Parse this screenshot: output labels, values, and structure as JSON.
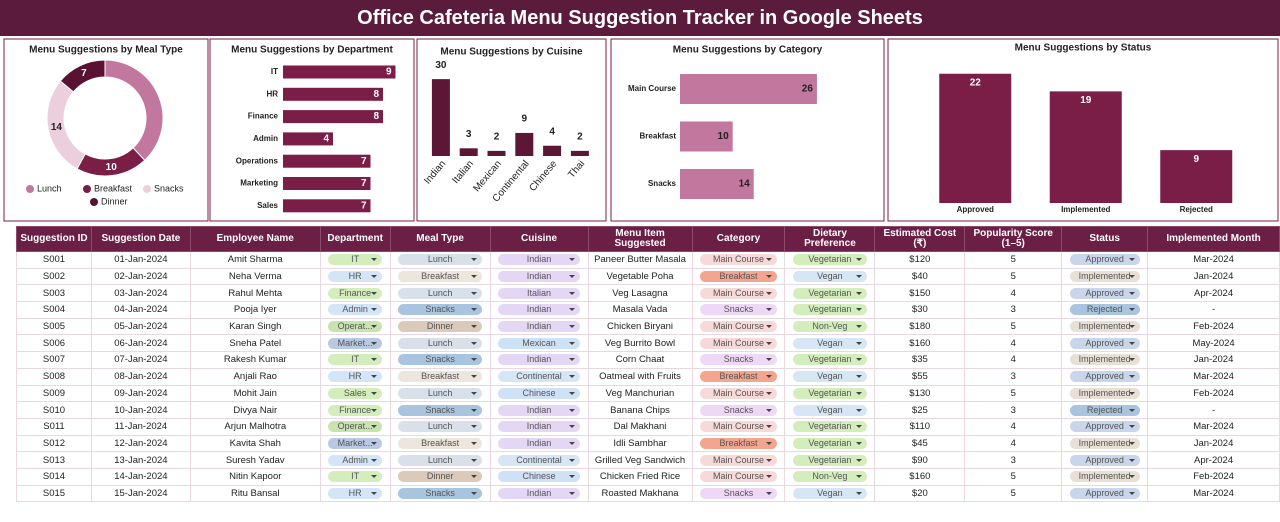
{
  "header": {
    "title": "Office Cafeteria Menu Suggestion Tracker in Google Sheets"
  },
  "chart_data": [
    {
      "type": "donut",
      "title": "Menu Suggestions by Meal Type",
      "categories": [
        "Lunch",
        "Breakfast",
        "Snacks",
        "Dinner"
      ],
      "values": [
        19,
        10,
        14,
        7
      ],
      "value_labels": [
        null,
        "10",
        "14",
        "7"
      ],
      "colors": [
        "#c2779f",
        "#7a1e48",
        "#eccfdc",
        "#5a1233"
      ]
    },
    {
      "type": "hbar",
      "title": "Menu Suggestions by Department",
      "categories": [
        "IT",
        "HR",
        "Finance",
        "Admin",
        "Operations",
        "Marketing",
        "Sales"
      ],
      "values": [
        9,
        8,
        8,
        4,
        7,
        7,
        7
      ],
      "color": "#7a1e48",
      "xlim": [
        0,
        10
      ]
    },
    {
      "type": "bar",
      "title": "Menu Suggestions by Cuisine",
      "categories": [
        "Indian",
        "Italian",
        "Mexican",
        "Continental",
        "Chinese",
        "Thai"
      ],
      "values": [
        30,
        3,
        2,
        9,
        4,
        2
      ],
      "color": "#5c1636",
      "ylim": [
        0,
        32
      ]
    },
    {
      "type": "hbar",
      "title": "Menu Suggestions by Category",
      "categories": [
        "Main Course",
        "Breakfast",
        "Snacks"
      ],
      "values": [
        26,
        10,
        14
      ],
      "color": "#c2779f",
      "xlim": [
        0,
        30
      ]
    },
    {
      "type": "bar",
      "title": "Menu Suggestions by Status",
      "categories": [
        "Approved",
        "Implemented",
        "Rejected"
      ],
      "values": [
        22,
        19,
        9
      ],
      "color": "#7a1e48",
      "ylim": [
        0,
        24
      ]
    }
  ],
  "table": {
    "columns": [
      "Suggestion ID",
      "Suggestion Date",
      "Employee Name",
      "Department",
      "Meal Type",
      "Cuisine",
      "Menu Item Suggested",
      "Category",
      "Dietary Preference",
      "Estimated Cost (₹)",
      "Popularity Score (1–5)",
      "Status",
      "Implemented Month"
    ],
    "rows": [
      [
        "S001",
        "01-Jan-2024",
        "Amit Sharma",
        "IT",
        "Lunch",
        "Indian",
        "Paneer Butter Masala",
        "Main Course",
        "Vegetarian",
        "$120",
        5,
        "Approved",
        "Mar-2024"
      ],
      [
        "S002",
        "02-Jan-2024",
        "Neha Verma",
        "HR",
        "Breakfast",
        "Indian",
        "Vegetable Poha",
        "Breakfast",
        "Vegan",
        "$40",
        5,
        "Implemented",
        "Jan-2024"
      ],
      [
        "S003",
        "03-Jan-2024",
        "Rahul Mehta",
        "Finance",
        "Lunch",
        "Italian",
        "Veg Lasagna",
        "Main Course",
        "Vegetarian",
        "$150",
        4,
        "Approved",
        "Apr-2024"
      ],
      [
        "S004",
        "04-Jan-2024",
        "Pooja Iyer",
        "Admin",
        "Snacks",
        "Indian",
        "Masala Vada",
        "Snacks",
        "Vegetarian",
        "$30",
        3,
        "Rejected",
        "-"
      ],
      [
        "S005",
        "05-Jan-2024",
        "Karan Singh",
        "Operat...",
        "Dinner",
        "Indian",
        "Chicken Biryani",
        "Main Course",
        "Non-Veg",
        "$180",
        5,
        "Implemented",
        "Feb-2024"
      ],
      [
        "S006",
        "06-Jan-2024",
        "Sneha Patel",
        "Market...",
        "Lunch",
        "Mexican",
        "Veg Burrito Bowl",
        "Main Course",
        "Vegan",
        "$160",
        4,
        "Approved",
        "May-2024"
      ],
      [
        "S007",
        "07-Jan-2024",
        "Rakesh Kumar",
        "IT",
        "Snacks",
        "Indian",
        "Corn Chaat",
        "Snacks",
        "Vegetarian",
        "$35",
        4,
        "Implemented",
        "Jan-2024"
      ],
      [
        "S008",
        "08-Jan-2024",
        "Anjali Rao",
        "HR",
        "Breakfast",
        "Continental",
        "Oatmeal with Fruits",
        "Breakfast",
        "Vegan",
        "$55",
        3,
        "Approved",
        "Mar-2024"
      ],
      [
        "S009",
        "09-Jan-2024",
        "Mohit Jain",
        "Sales",
        "Lunch",
        "Chinese",
        "Veg Manchurian",
        "Main Course",
        "Vegetarian",
        "$130",
        5,
        "Implemented",
        "Feb-2024"
      ],
      [
        "S010",
        "10-Jan-2024",
        "Divya Nair",
        "Finance",
        "Snacks",
        "Indian",
        "Banana Chips",
        "Snacks",
        "Vegan",
        "$25",
        3,
        "Rejected",
        "-"
      ],
      [
        "S011",
        "11-Jan-2024",
        "Arjun Malhotra",
        "Operat...",
        "Lunch",
        "Indian",
        "Dal Makhani",
        "Main Course",
        "Vegetarian",
        "$110",
        4,
        "Approved",
        "Mar-2024"
      ],
      [
        "S012",
        "12-Jan-2024",
        "Kavita Shah",
        "Market...",
        "Breakfast",
        "Indian",
        "Idli Sambhar",
        "Breakfast",
        "Vegetarian",
        "$45",
        4,
        "Implemented",
        "Jan-2024"
      ],
      [
        "S013",
        "13-Jan-2024",
        "Suresh Yadav",
        "Admin",
        "Lunch",
        "Continental",
        "Grilled Veg Sandwich",
        "Main Course",
        "Vegetarian",
        "$90",
        3,
        "Approved",
        "Apr-2024"
      ],
      [
        "S014",
        "14-Jan-2024",
        "Nitin Kapoor",
        "IT",
        "Dinner",
        "Chinese",
        "Chicken Fried Rice",
        "Main Course",
        "Non-Veg",
        "$160",
        5,
        "Implemented",
        "Feb-2024"
      ],
      [
        "S015",
        "15-Jan-2024",
        "Ritu Bansal",
        "HR",
        "Snacks",
        "Indian",
        "Roasted Makhana",
        "Snacks",
        "Vegan",
        "$20",
        5,
        "Approved",
        "Mar-2024"
      ]
    ],
    "chip_colors": {
      "3": {
        "IT": "#d4edbc",
        "HR": "#d3e5f6",
        "Finance": "#d4edbc",
        "Admin": "#d3e5f6",
        "Operat...": "#c9e3b0",
        "Market...": "#b9c8e3",
        "Sales": "#d4edbc"
      },
      "4": {
        "Lunch": "#d8e0ea",
        "Breakfast": "#ece6dd",
        "Snacks": "#a9c4de",
        "Dinner": "#dbc9b9"
      },
      "5": {
        "Indian": "#e4d7f5",
        "Italian": "#e4d7f5",
        "Mexican": "#cfe1f6",
        "Continental": "#d6e6f5",
        "Chinese": "#cfe1f6"
      },
      "7": {
        "Main Course": "#f8d9d9",
        "Breakfast": "#f4a590",
        "Snacks": "#eed8f6"
      },
      "8": {
        "Vegetarian": "#d4edbc",
        "Vegan": "#d6e6f5",
        "Non-Veg": "#d4edbc"
      },
      "11": {
        "Approved": "#c8d5ea",
        "Implemented": "#e8dfd5",
        "Rejected": "#a9c4de"
      }
    }
  }
}
